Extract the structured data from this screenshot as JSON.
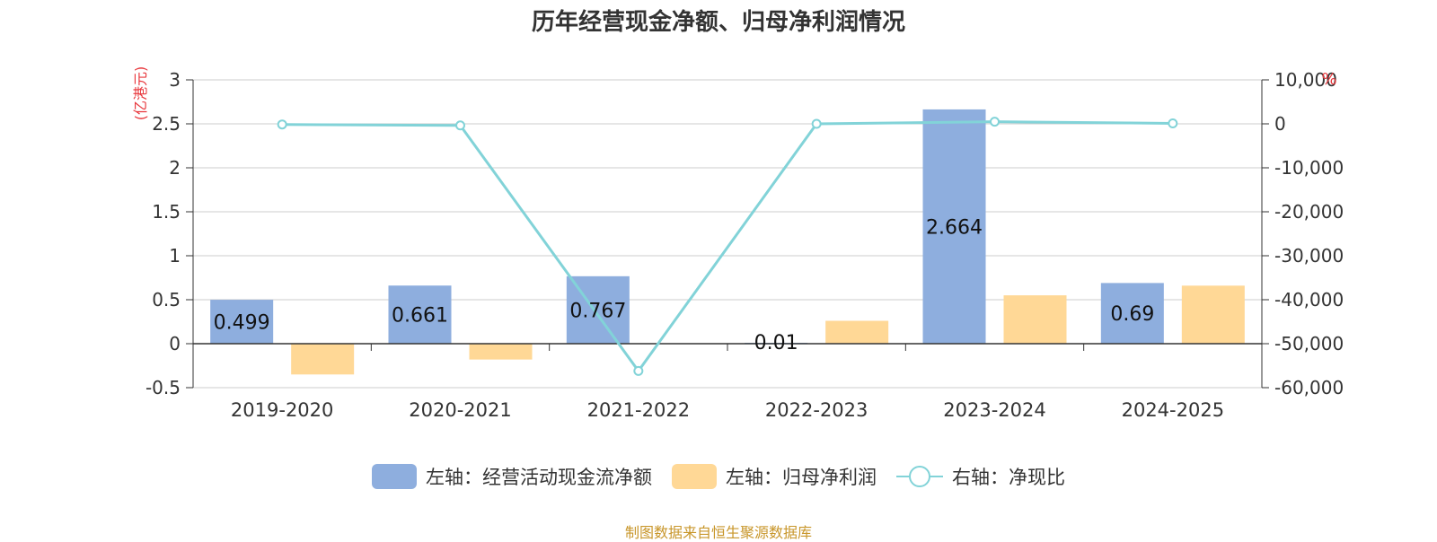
{
  "title": "历年经营现金净额、归母净利润情况",
  "source_note": "制图数据来自恒生聚源数据库",
  "legend": {
    "series1": "左轴：经营活动现金流净额",
    "series2": "左轴：归母净利润",
    "series3": "右轴：净现比"
  },
  "colors": {
    "bar_blue": "#8eaede",
    "bar_orange": "#ffd896",
    "line_teal": "#82d3d8",
    "unit_red": "#e8383d",
    "axis": "#333333",
    "grid": "#cccccc"
  },
  "chart_data": {
    "type": "bar",
    "categories": [
      "2019-2020",
      "2020-2021",
      "2021-2022",
      "2022-2023",
      "2023-2024",
      "2024-2025"
    ],
    "left_axis": {
      "unit": "(亿港元)",
      "ylim": [
        -0.5,
        3
      ],
      "ticks": [
        -0.5,
        0,
        0.5,
        1,
        1.5,
        2,
        2.5,
        3
      ],
      "tick_labels": [
        "-0.5",
        "0",
        "0.5",
        "1",
        "1.5",
        "2",
        "2.5",
        "3"
      ]
    },
    "right_axis": {
      "unit": "%",
      "ylim": [
        -60000,
        10000
      ],
      "ticks": [
        -60000,
        -50000,
        -40000,
        -30000,
        -20000,
        -10000,
        0,
        10000
      ],
      "tick_labels": [
        "-60,000",
        "-50,000",
        "-40,000",
        "-30,000",
        "-20,000",
        "-10,000",
        "0",
        "10,000"
      ]
    },
    "grid": true,
    "legend_position": "bottom",
    "series": [
      {
        "name": "左轴：经营活动现金流净额",
        "axis": "left",
        "kind": "bar",
        "values": [
          0.499,
          0.661,
          0.767,
          0.01,
          2.664,
          0.69
        ],
        "labels": [
          "0.499",
          "0.661",
          "0.767",
          "0.01",
          "2.664",
          "0.69"
        ]
      },
      {
        "name": "左轴：归母净利润",
        "axis": "left",
        "kind": "bar",
        "values": [
          -0.35,
          -0.18,
          0,
          0.26,
          0.55,
          0.66
        ]
      },
      {
        "name": "右轴：净现比",
        "axis": "right",
        "kind": "line",
        "values": [
          -142,
          -367,
          -56200,
          4,
          484,
          105
        ]
      }
    ]
  }
}
